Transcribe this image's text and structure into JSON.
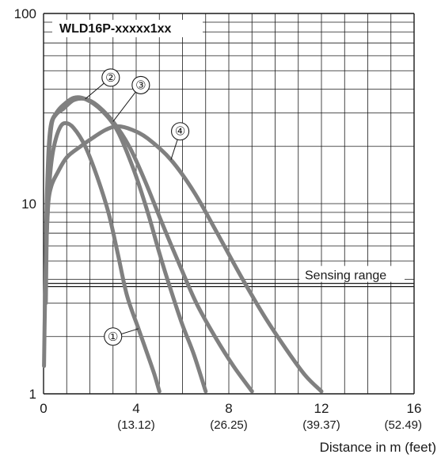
{
  "chart_data": {
    "type": "line",
    "title": "WLD16P-xxxxx1xx",
    "xlabel": "Distance in m (feet)",
    "ylabel": "",
    "xlim": [
      0,
      16
    ],
    "ylim": [
      1,
      100
    ],
    "yscale": "log",
    "grid": true,
    "x_ticks": [
      {
        "value": 0,
        "label": "0",
        "sub": ""
      },
      {
        "value": 4,
        "label": "4",
        "sub": "(13.12)"
      },
      {
        "value": 8,
        "label": "8",
        "sub": "(26.25)"
      },
      {
        "value": 12,
        "label": "12",
        "sub": "(39.37)"
      },
      {
        "value": 16,
        "label": "16",
        "sub": "(52.49)"
      }
    ],
    "y_ticks": [
      {
        "value": 1,
        "label": "1"
      },
      {
        "value": 10,
        "label": "10"
      },
      {
        "value": 100,
        "label": "100"
      }
    ],
    "sensing_range": {
      "label": "Sensing range",
      "value": 3.7
    },
    "curve_color": "#808080",
    "series": [
      {
        "marker": "①",
        "label_at": {
          "x": 3.0,
          "y": 2.0
        },
        "points": [
          [
            0.02,
            1.4
          ],
          [
            0.06,
            3
          ],
          [
            0.12,
            6
          ],
          [
            0.2,
            10
          ],
          [
            0.3,
            15
          ],
          [
            0.45,
            20
          ],
          [
            0.7,
            25
          ],
          [
            0.95,
            26.5
          ],
          [
            1.3,
            25
          ],
          [
            1.8,
            20
          ],
          [
            2.3,
            14
          ],
          [
            2.8,
            9
          ],
          [
            3.2,
            5.5
          ],
          [
            3.6,
            3.3
          ],
          [
            4.1,
            2.2
          ],
          [
            4.5,
            1.6
          ],
          [
            4.8,
            1.25
          ],
          [
            5.0,
            1.03
          ]
        ]
      },
      {
        "marker": "②",
        "label_at": {
          "x": 2.9,
          "y": 46
        },
        "points": [
          [
            0.08,
            3
          ],
          [
            0.12,
            8
          ],
          [
            0.18,
            15
          ],
          [
            0.25,
            22
          ],
          [
            0.35,
            27
          ],
          [
            0.55,
            30
          ],
          [
            0.85,
            33
          ],
          [
            1.3,
            36
          ],
          [
            1.8,
            35.5
          ],
          [
            2.5,
            31
          ],
          [
            3.2,
            24
          ],
          [
            3.9,
            15
          ],
          [
            4.5,
            9
          ],
          [
            5.0,
            5.5
          ],
          [
            5.5,
            3.5
          ],
          [
            6.0,
            2.3
          ],
          [
            6.5,
            1.6
          ],
          [
            7.0,
            1.03
          ]
        ]
      },
      {
        "marker": "③",
        "label_at": {
          "x": 4.2,
          "y": 42
        },
        "points": [
          [
            0.1,
            3
          ],
          [
            0.15,
            9
          ],
          [
            0.22,
            17
          ],
          [
            0.35,
            26
          ],
          [
            0.55,
            29.5
          ],
          [
            0.85,
            31.5
          ],
          [
            1.3,
            35
          ],
          [
            1.8,
            35.5
          ],
          [
            2.3,
            33
          ],
          [
            3.0,
            27
          ],
          [
            3.7,
            20
          ],
          [
            4.4,
            13
          ],
          [
            5.1,
            8
          ],
          [
            5.8,
            5
          ],
          [
            6.6,
            3
          ],
          [
            7.4,
            2
          ],
          [
            8.2,
            1.4
          ],
          [
            9.0,
            1.03
          ]
        ]
      },
      {
        "marker": "④",
        "label_at": {
          "x": 5.9,
          "y": 24
        },
        "points": [
          [
            0.12,
            6
          ],
          [
            0.2,
            10
          ],
          [
            0.35,
            12.5
          ],
          [
            0.6,
            14.5
          ],
          [
            1.0,
            17.5
          ],
          [
            1.6,
            20
          ],
          [
            2.2,
            22.5
          ],
          [
            2.7,
            24.5
          ],
          [
            3.2,
            25.5
          ],
          [
            3.8,
            24.5
          ],
          [
            4.5,
            22
          ],
          [
            5.5,
            17
          ],
          [
            6.5,
            11.5
          ],
          [
            7.5,
            7
          ],
          [
            8.5,
            4.2
          ],
          [
            9.5,
            2.6
          ],
          [
            10.5,
            1.7
          ],
          [
            11.3,
            1.25
          ],
          [
            12.0,
            1.03
          ]
        ]
      }
    ]
  }
}
